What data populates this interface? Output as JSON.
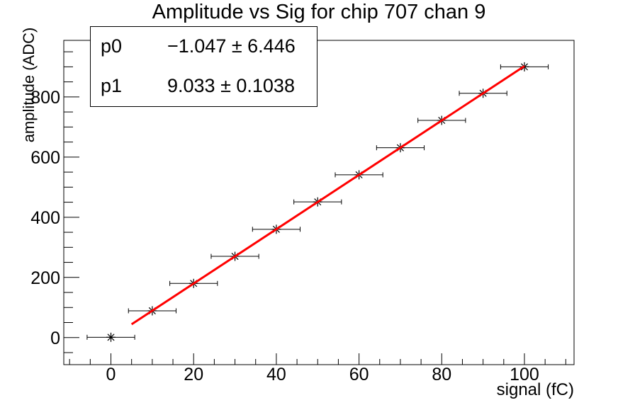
{
  "title": "Amplitude vs Sig for chip 707 chan 9",
  "stats": {
    "rows": [
      {
        "param": "p0",
        "value": "−1.047 ± 6.446"
      },
      {
        "param": "p1",
        "value": "9.033 ± 0.1038"
      }
    ]
  },
  "chart_data": {
    "type": "scatter",
    "title": "Amplitude vs Sig for chip 707 chan 9",
    "xlabel": "signal (fC)",
    "ylabel": "amplitude (ADC)",
    "x": [
      0,
      10,
      20,
      30,
      40,
      50,
      60,
      70,
      80,
      90,
      100
    ],
    "y": [
      1,
      89,
      180,
      270,
      360,
      451,
      541,
      631,
      722,
      812,
      900
    ],
    "x_error": 1.8,
    "xlim": [
      -11.4,
      112.0
    ],
    "ylim": [
      -90,
      988
    ],
    "x_ticks": [
      0,
      20,
      40,
      60,
      80,
      100
    ],
    "y_ticks": [
      0,
      200,
      400,
      600,
      800
    ],
    "x_minor_step": 5,
    "x_minor_range": [
      -10,
      110
    ],
    "y_minor_step": 50,
    "y_minor_range": [
      -50,
      950
    ],
    "marker": "asterisk",
    "marker_color": "#000000",
    "grid": false,
    "legend_position": "none",
    "fit": {
      "type": "linear",
      "p0": -1.047,
      "p1": 9.033,
      "range": [
        5,
        100
      ],
      "color": "#ff0000",
      "line_width": 3
    },
    "colors": {
      "axis": "#000000",
      "background": "#ffffff",
      "stats_border": "#000000"
    }
  }
}
